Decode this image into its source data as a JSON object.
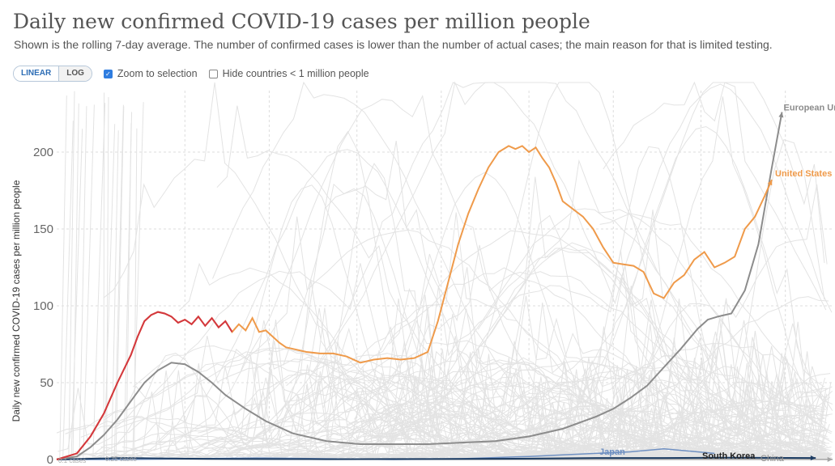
{
  "header": {
    "title": "Daily new confirmed COVID-19 cases per million people",
    "subtitle": "Shown is the rolling 7-day average. The number of confirmed cases is lower than the number of actual cases; the main reason for that is limited testing."
  },
  "controls": {
    "scale_linear": "LINEAR",
    "scale_log": "LOG",
    "active_scale": "linear",
    "zoom_label": "Zoom to selection",
    "zoom_checked": true,
    "hide_label": "Hide countries < 1 million people",
    "hide_checked": false
  },
  "colors": {
    "grid": "#dddddd",
    "background_lines": "#e3e3e3",
    "european_union": "#8c8c8c",
    "united_states": "#ef9a4a",
    "us_highlight": "#d3373f",
    "japan": "#6f90c2",
    "south_korea": "#1d3d63",
    "china": "#a4a4a4"
  },
  "chart_data": {
    "type": "line",
    "title": "Daily new confirmed COVID-19 cases per million people",
    "ylabel": "Daily new confirmed COVID-19 cases per million people",
    "xlabel": "",
    "ylim": [
      0,
      240
    ],
    "y_ticks": [
      0,
      50,
      100,
      150,
      200
    ],
    "x_range": [
      0,
      230
    ],
    "grid": true,
    "dashed_vertical_gridlines": true,
    "background_series": "many other countries in light grey",
    "threshold_labels": [
      "0.1 cases",
      "0.25 cases"
    ],
    "series": [
      {
        "name": "European Union",
        "color": "#8c8c8c",
        "x": [
          0,
          6,
          10,
          14,
          18,
          22,
          26,
          30,
          34,
          38,
          42,
          46,
          50,
          56,
          62,
          70,
          80,
          90,
          100,
          110,
          120,
          130,
          140,
          150,
          160,
          165,
          170,
          175,
          180,
          185,
          190,
          193,
          196,
          200,
          204,
          208,
          212,
          215
        ],
        "values": [
          0,
          2,
          8,
          16,
          26,
          38,
          50,
          58,
          63,
          62,
          57,
          50,
          42,
          33,
          25,
          17,
          12,
          10,
          10,
          10,
          11,
          12,
          15,
          20,
          28,
          33,
          40,
          48,
          60,
          72,
          85,
          91,
          93,
          95,
          110,
          140,
          190,
          226
        ]
      },
      {
        "name": "United States",
        "color": "#ef9a4a",
        "x": [
          0,
          6,
          10,
          14,
          18,
          22,
          24,
          26,
          28,
          30,
          32,
          34,
          36,
          38,
          40,
          42,
          44,
          46,
          48,
          50,
          52,
          54,
          56,
          58,
          60,
          62,
          64,
          66,
          68,
          70,
          74,
          78,
          82,
          86,
          90,
          94,
          98,
          102,
          106,
          110,
          113,
          116,
          119,
          122,
          125,
          128,
          131,
          134,
          136,
          138,
          140,
          142,
          144,
          146,
          148,
          150,
          153,
          156,
          159,
          162,
          165,
          168,
          171,
          174,
          177,
          180,
          183,
          186,
          189,
          192,
          195,
          198,
          201,
          204,
          207,
          210,
          212
        ],
        "values": [
          0,
          4,
          15,
          30,
          50,
          68,
          80,
          90,
          94,
          96,
          95,
          93,
          89,
          91,
          88,
          93,
          87,
          92,
          86,
          90,
          83,
          88,
          84,
          92,
          83,
          84,
          80,
          76,
          73,
          72,
          70,
          69,
          69,
          67,
          63,
          65,
          66,
          65,
          66,
          70,
          90,
          115,
          140,
          160,
          176,
          190,
          200,
          204,
          202,
          204,
          200,
          203,
          196,
          190,
          180,
          168,
          163,
          158,
          150,
          138,
          128,
          127,
          126,
          122,
          108,
          105,
          115,
          120,
          130,
          135,
          125,
          128,
          132,
          150,
          158,
          172,
          182
        ]
      },
      {
        "name": "Japan",
        "color": "#6f90c2",
        "x": [
          0,
          20,
          40,
          60,
          80,
          100,
          120,
          140,
          150,
          160,
          170,
          175,
          180,
          185,
          190,
          195
        ],
        "values": [
          0,
          0,
          0.5,
          1,
          0.5,
          0,
          0.5,
          2,
          3,
          4,
          5,
          6,
          7,
          6,
          5,
          4
        ]
      },
      {
        "name": "South Korea",
        "color": "#1d3d63",
        "x": [
          0,
          20,
          40,
          60,
          80,
          100,
          120,
          140,
          160,
          180,
          200,
          225
        ],
        "values": [
          0,
          1,
          0.5,
          0.3,
          0.2,
          0.3,
          0.4,
          0.6,
          1,
          1,
          1.2,
          1
        ]
      },
      {
        "name": "China",
        "color": "#a4a4a4",
        "x": [
          0,
          40,
          80,
          120,
          160,
          200,
          230
        ],
        "values": [
          0.5,
          0.3,
          0.1,
          0.05,
          0.05,
          0.05,
          0.05
        ]
      }
    ],
    "series_labels": [
      "European Union",
      "United States",
      "Japan",
      "South Korea",
      "China"
    ]
  }
}
